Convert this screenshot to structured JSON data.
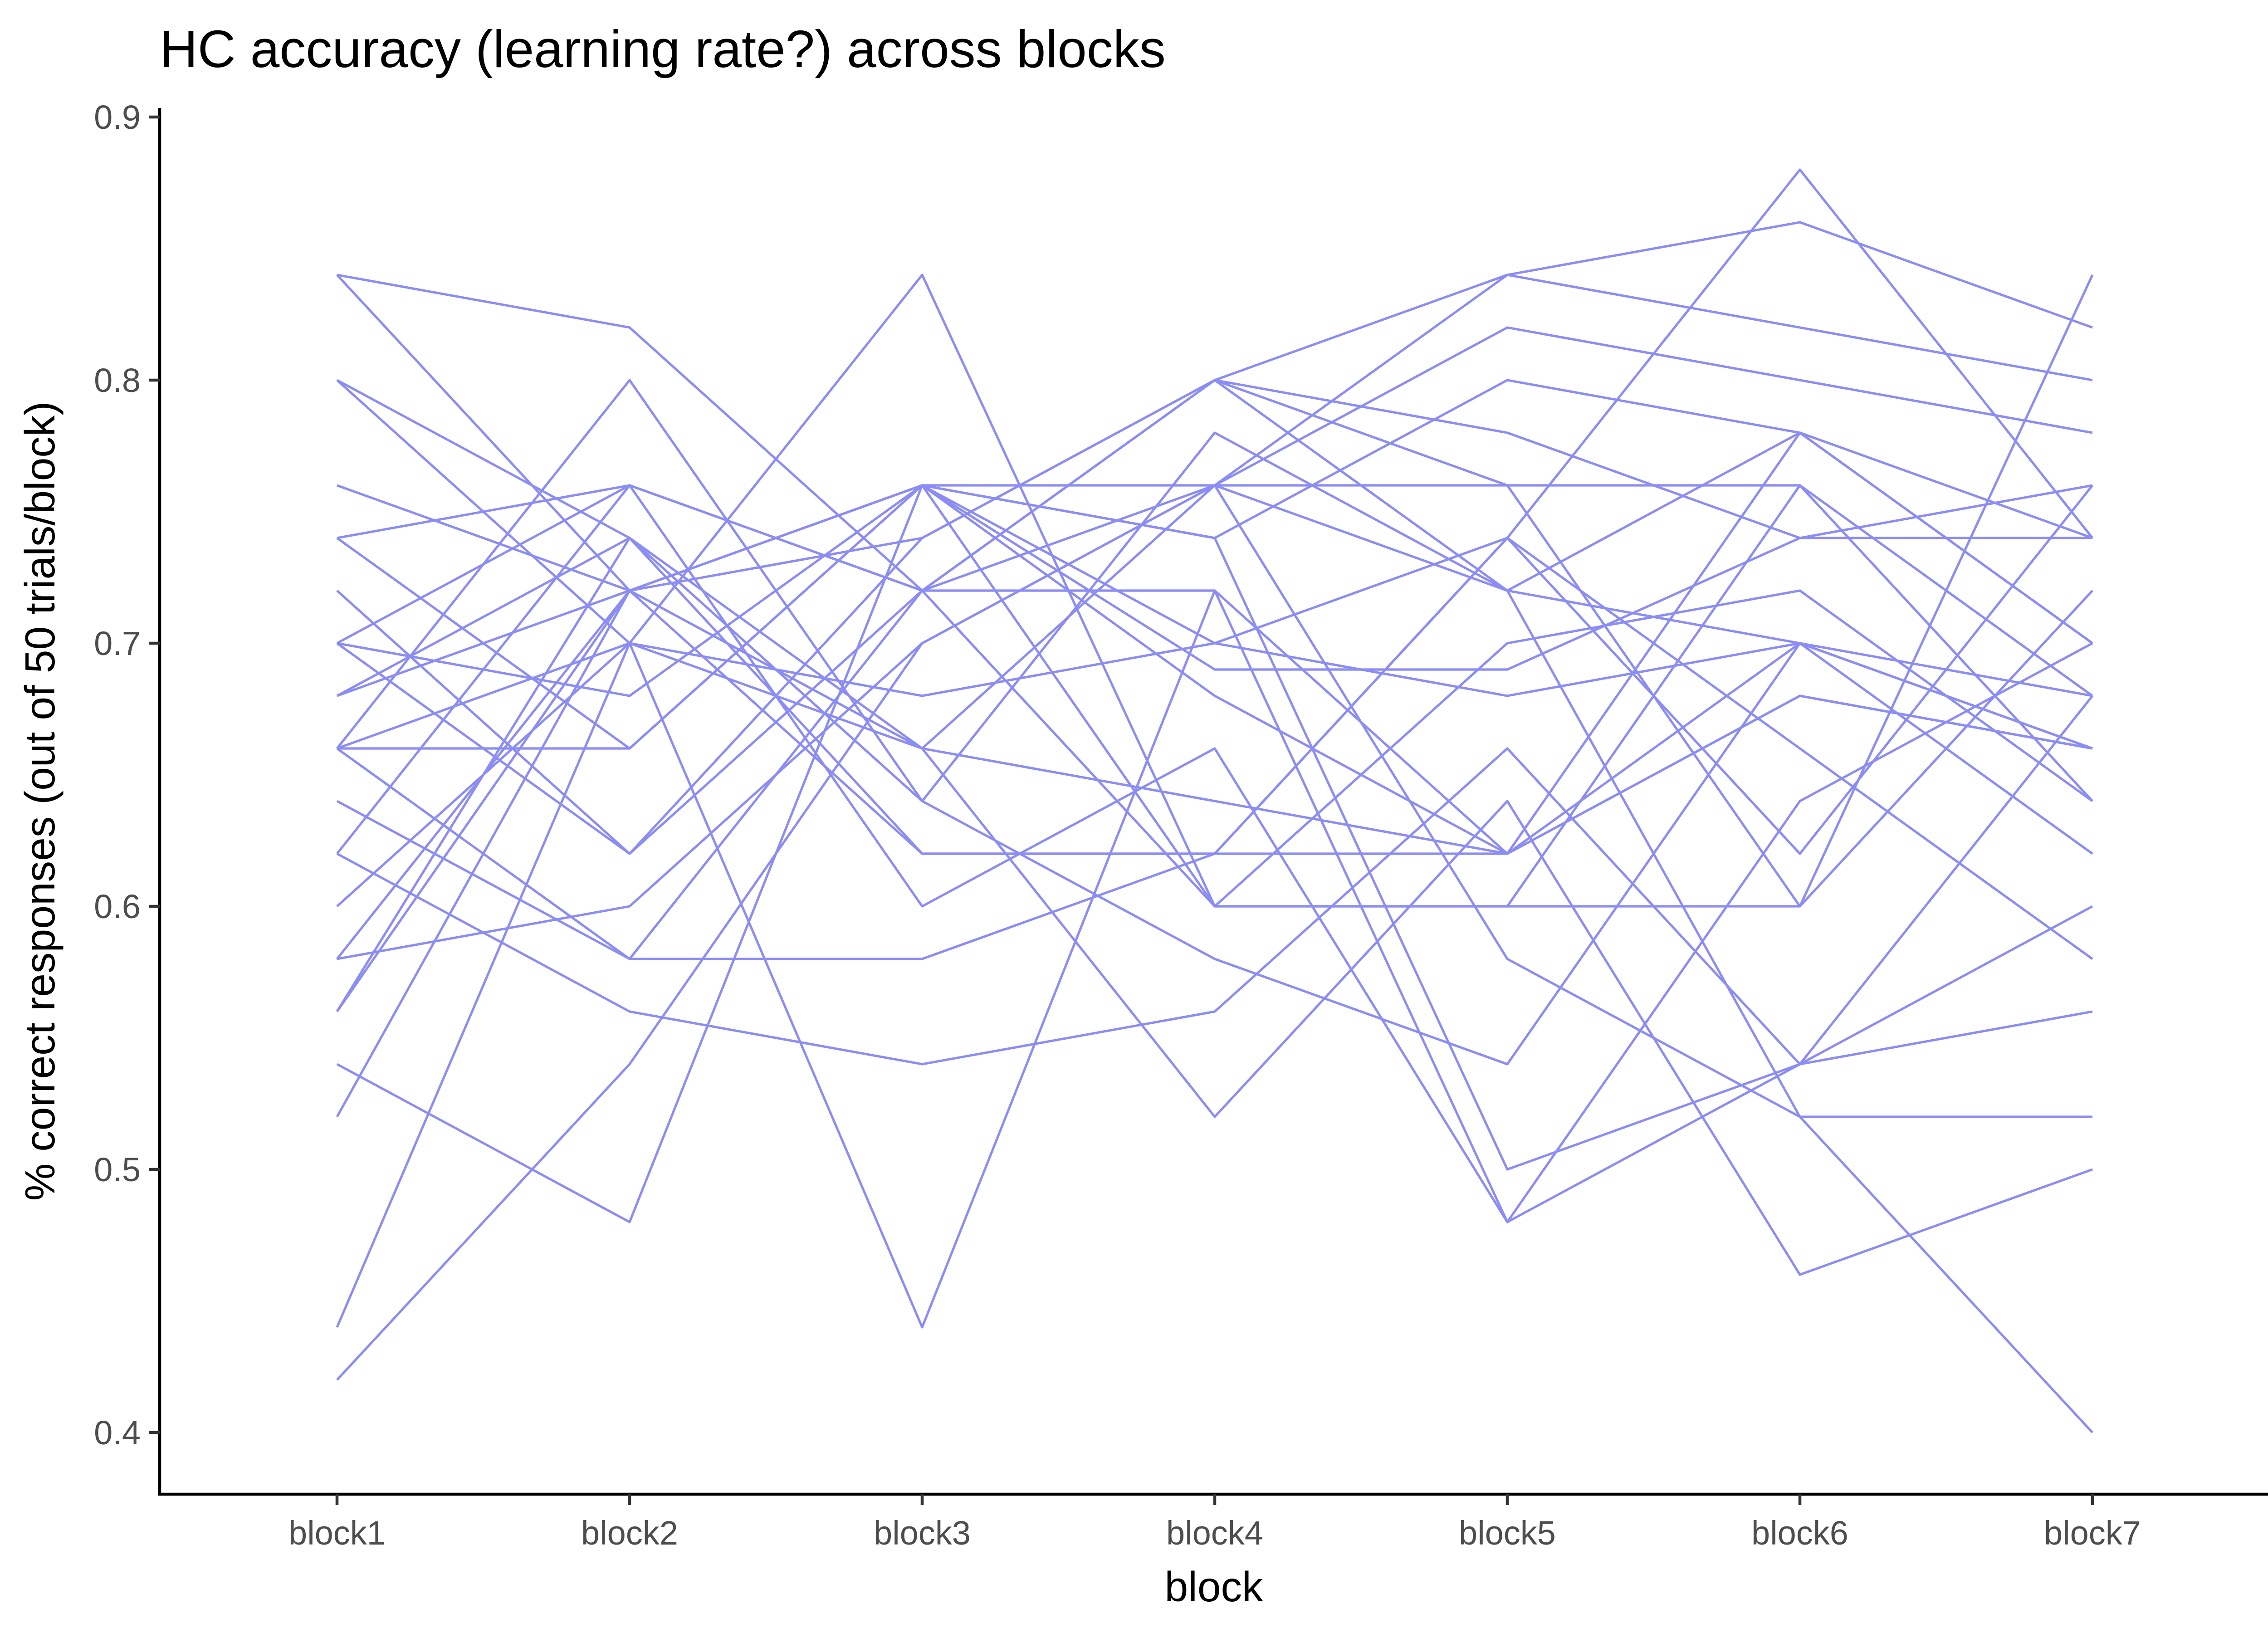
{
  "chart_data": {
    "type": "line",
    "title": "HC accuracy (learning rate?) across blocks",
    "xlabel": "block",
    "ylabel": "% correct responses (out of 50 trials/block)",
    "categories": [
      "block1",
      "block2",
      "block3",
      "block4",
      "block5",
      "block6",
      "block7"
    ],
    "ylim": [
      0.4,
      0.9
    ],
    "yticks": [
      "0.4",
      "0.5",
      "0.6",
      "0.7",
      "0.8",
      "0.9"
    ],
    "grid": false,
    "legend": "none",
    "line_color": "#8c8cf5",
    "series": [
      {
        "values": [
          0.84,
          0.82,
          0.72,
          0.8,
          0.72,
          0.78,
          0.74
        ]
      },
      {
        "values": [
          0.84,
          0.72,
          0.76,
          0.76,
          0.84,
          0.86,
          0.82
        ]
      },
      {
        "values": [
          0.8,
          0.74,
          0.62,
          0.62,
          0.74,
          0.88,
          0.74
        ]
      },
      {
        "values": [
          0.8,
          0.7,
          0.84,
          0.6,
          0.6,
          0.6,
          0.84
        ]
      },
      {
        "values": [
          0.76,
          0.72,
          0.74,
          0.8,
          0.84,
          0.82,
          0.8
        ]
      },
      {
        "values": [
          0.74,
          0.76,
          0.72,
          0.76,
          0.82,
          0.8,
          0.78
        ]
      },
      {
        "values": [
          0.74,
          0.66,
          0.76,
          0.74,
          0.8,
          0.78,
          0.7
        ]
      },
      {
        "values": [
          0.72,
          0.62,
          0.74,
          0.8,
          0.78,
          0.74,
          0.76
        ]
      },
      {
        "values": [
          0.7,
          0.76,
          0.72,
          0.72,
          0.62,
          0.68,
          0.66
        ]
      },
      {
        "values": [
          0.7,
          0.62,
          0.72,
          0.8,
          0.76,
          0.76,
          0.64
        ]
      },
      {
        "values": [
          0.7,
          0.68,
          0.76,
          0.68,
          0.62,
          0.7,
          0.68
        ]
      },
      {
        "values": [
          0.68,
          0.72,
          0.76,
          0.7,
          0.74,
          0.62,
          0.76
        ]
      },
      {
        "values": [
          0.68,
          0.74,
          0.66,
          0.76,
          0.76,
          0.6,
          0.72
        ]
      },
      {
        "values": [
          0.66,
          0.8,
          0.64,
          0.78,
          0.72,
          0.7,
          0.66
        ]
      },
      {
        "values": [
          0.66,
          0.66,
          0.76,
          0.6,
          0.7,
          0.72,
          0.64
        ]
      },
      {
        "values": [
          0.66,
          0.7,
          0.66,
          0.64,
          0.62,
          0.78,
          0.7
        ]
      },
      {
        "values": [
          0.66,
          0.58,
          0.58,
          0.62,
          0.62,
          0.68,
          0.66
        ]
      },
      {
        "values": [
          0.64,
          0.58,
          0.72,
          0.6,
          0.6,
          0.76,
          0.68
        ]
      },
      {
        "values": [
          0.62,
          0.56,
          0.54,
          0.56,
          0.66,
          0.54,
          0.56
        ]
      },
      {
        "values": [
          0.62,
          0.76,
          0.6,
          0.66,
          0.48,
          0.54,
          0.6
        ]
      },
      {
        "values": [
          0.6,
          0.7,
          0.68,
          0.7,
          0.68,
          0.7,
          0.62
        ]
      },
      {
        "values": [
          0.58,
          0.72,
          0.76,
          0.69,
          0.69,
          0.74,
          0.74
        ]
      },
      {
        "values": [
          0.58,
          0.6,
          0.7,
          0.76,
          0.72,
          0.52,
          0.52
        ]
      },
      {
        "values": [
          0.56,
          0.72,
          0.62,
          0.62,
          0.74,
          0.66,
          0.58
        ]
      },
      {
        "values": [
          0.56,
          0.74,
          0.64,
          0.58,
          0.54,
          0.7,
          0.66
        ]
      },
      {
        "values": [
          0.54,
          0.48,
          0.76,
          0.74,
          0.5,
          0.54,
          0.68
        ]
      },
      {
        "values": [
          0.52,
          0.72,
          0.66,
          0.52,
          0.64,
          0.46,
          0.5
        ]
      },
      {
        "values": [
          0.44,
          0.7,
          0.44,
          0.72,
          0.48,
          0.64,
          0.7
        ]
      },
      {
        "values": [
          0.42,
          0.54,
          0.7,
          0.76,
          0.58,
          0.52,
          0.4
        ]
      }
    ]
  }
}
